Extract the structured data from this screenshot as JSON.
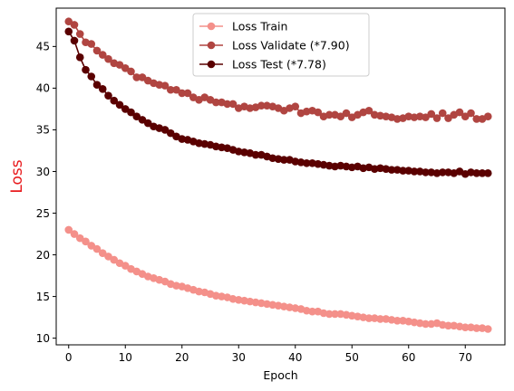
{
  "chart_data": {
    "type": "line",
    "xlabel": "Epoch",
    "ylabel": "Loss",
    "ylabel_color": "#e8191c",
    "xlim": [
      -2.2,
      77.0
    ],
    "ylim": [
      9.2,
      49.6
    ],
    "xticks": [
      0,
      10,
      20,
      30,
      40,
      50,
      60,
      70
    ],
    "yticks": [
      10,
      15,
      20,
      25,
      30,
      35,
      40,
      45
    ],
    "legend_location": "upper-center",
    "x": [
      0,
      1,
      2,
      3,
      4,
      5,
      6,
      7,
      8,
      9,
      10,
      11,
      12,
      13,
      14,
      15,
      16,
      17,
      18,
      19,
      20,
      21,
      22,
      23,
      24,
      25,
      26,
      27,
      28,
      29,
      30,
      31,
      32,
      33,
      34,
      35,
      36,
      37,
      38,
      39,
      40,
      41,
      42,
      43,
      44,
      45,
      46,
      47,
      48,
      49,
      50,
      51,
      52,
      53,
      54,
      55,
      56,
      57,
      58,
      59,
      60,
      61,
      62,
      63,
      64,
      65,
      66,
      67,
      68,
      69,
      70,
      71,
      72,
      73,
      74
    ],
    "series": [
      {
        "name": "Loss Train",
        "color": "#f4908a",
        "values": [
          23.0,
          22.5,
          22.0,
          21.6,
          21.1,
          20.7,
          20.2,
          19.8,
          19.4,
          19.0,
          18.7,
          18.3,
          18.0,
          17.7,
          17.4,
          17.2,
          17.0,
          16.8,
          16.5,
          16.3,
          16.2,
          16.0,
          15.8,
          15.6,
          15.5,
          15.3,
          15.1,
          15.0,
          14.9,
          14.7,
          14.6,
          14.5,
          14.4,
          14.3,
          14.2,
          14.1,
          14.0,
          13.9,
          13.8,
          13.7,
          13.6,
          13.5,
          13.3,
          13.2,
          13.2,
          13.0,
          12.9,
          12.9,
          12.9,
          12.8,
          12.7,
          12.6,
          12.5,
          12.4,
          12.4,
          12.3,
          12.3,
          12.2,
          12.1,
          12.1,
          12.0,
          11.9,
          11.8,
          11.7,
          11.7,
          11.8,
          11.6,
          11.5,
          11.5,
          11.4,
          11.3,
          11.3,
          11.2,
          11.2,
          11.1
        ]
      },
      {
        "name": "Loss Validate (*7.90)",
        "color": "#b04541",
        "values": [
          48.0,
          47.6,
          46.5,
          45.5,
          45.3,
          44.5,
          44.0,
          43.5,
          43.0,
          42.8,
          42.4,
          42.0,
          41.3,
          41.3,
          40.9,
          40.6,
          40.4,
          40.3,
          39.8,
          39.8,
          39.4,
          39.4,
          38.9,
          38.6,
          38.9,
          38.6,
          38.3,
          38.3,
          38.1,
          38.1,
          37.6,
          37.8,
          37.6,
          37.7,
          37.9,
          37.9,
          37.8,
          37.6,
          37.3,
          37.6,
          37.8,
          37.0,
          37.2,
          37.3,
          37.1,
          36.6,
          36.8,
          36.8,
          36.6,
          37.0,
          36.5,
          36.8,
          37.1,
          37.3,
          36.8,
          36.7,
          36.6,
          36.5,
          36.3,
          36.4,
          36.6,
          36.5,
          36.6,
          36.5,
          36.9,
          36.4,
          37.0,
          36.4,
          36.8,
          37.1,
          36.6,
          37.0,
          36.3,
          36.3,
          36.6
        ]
      },
      {
        "name": "Loss Test (*7.78)",
        "color": "#5a0000",
        "values": [
          46.8,
          45.7,
          43.7,
          42.2,
          41.4,
          40.4,
          39.9,
          39.1,
          38.5,
          38.0,
          37.5,
          37.1,
          36.6,
          36.2,
          35.8,
          35.4,
          35.2,
          35.0,
          34.6,
          34.2,
          33.9,
          33.8,
          33.6,
          33.4,
          33.3,
          33.2,
          33.0,
          32.9,
          32.8,
          32.6,
          32.4,
          32.3,
          32.2,
          32.0,
          32.0,
          31.8,
          31.6,
          31.5,
          31.4,
          31.4,
          31.2,
          31.1,
          31.0,
          31.0,
          30.9,
          30.8,
          30.7,
          30.6,
          30.7,
          30.6,
          30.5,
          30.6,
          30.4,
          30.5,
          30.3,
          30.4,
          30.3,
          30.2,
          30.2,
          30.1,
          30.1,
          30.0,
          30.0,
          29.9,
          29.9,
          29.8,
          29.9,
          29.9,
          29.8,
          30.0,
          29.7,
          29.9,
          29.8,
          29.8,
          29.8
        ]
      }
    ]
  }
}
